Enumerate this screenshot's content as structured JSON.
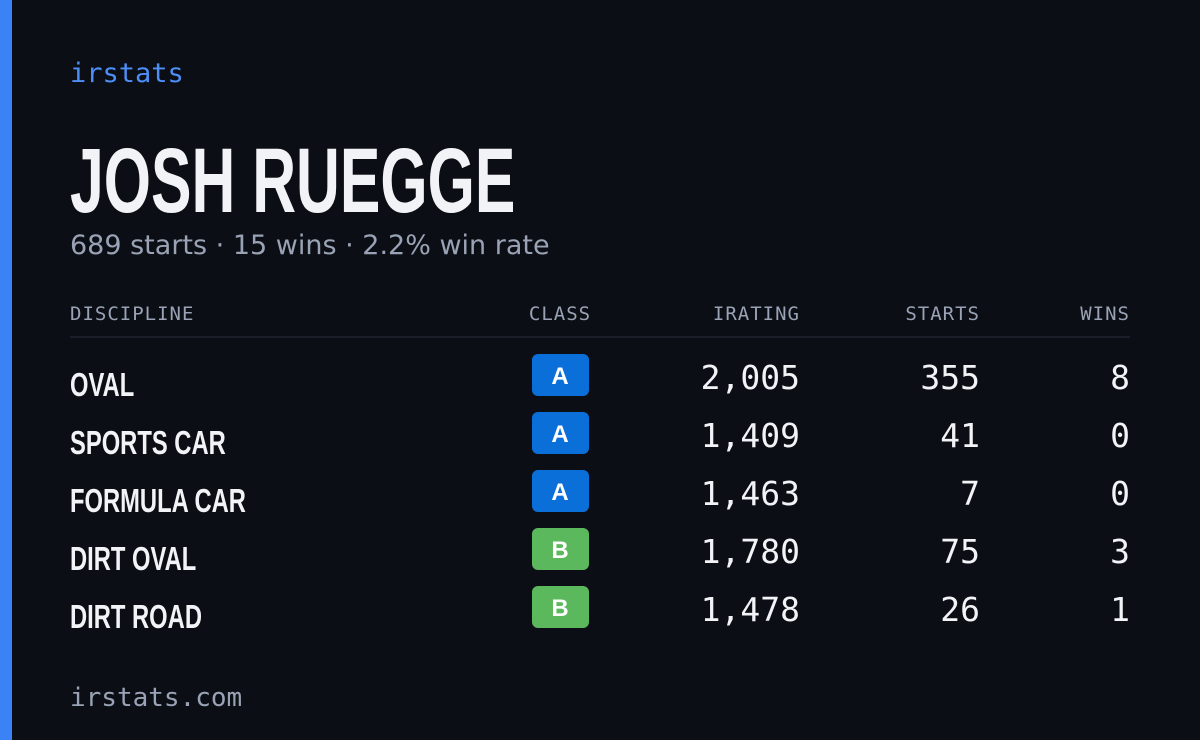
{
  "brand": "irstats",
  "driver": {
    "name": "JOSH RUEGGE",
    "summary": "689 starts · 15 wins · 2.2% win rate"
  },
  "table": {
    "headers": [
      "DISCIPLINE",
      "CLASS",
      "IRATING",
      "STARTS",
      "WINS"
    ],
    "rows": [
      [
        "OVAL",
        "A",
        "2,005",
        "355",
        "8"
      ],
      [
        "SPORTS CAR",
        "A",
        "1,409",
        "41",
        "0"
      ],
      [
        "FORMULA CAR",
        "A",
        "1,463",
        "7",
        "0"
      ],
      [
        "DIRT OVAL",
        "B",
        "1,780",
        "75",
        "3"
      ],
      [
        "DIRT ROAD",
        "B",
        "1,478",
        "26",
        "1"
      ]
    ]
  },
  "footer": "irstats.com"
}
